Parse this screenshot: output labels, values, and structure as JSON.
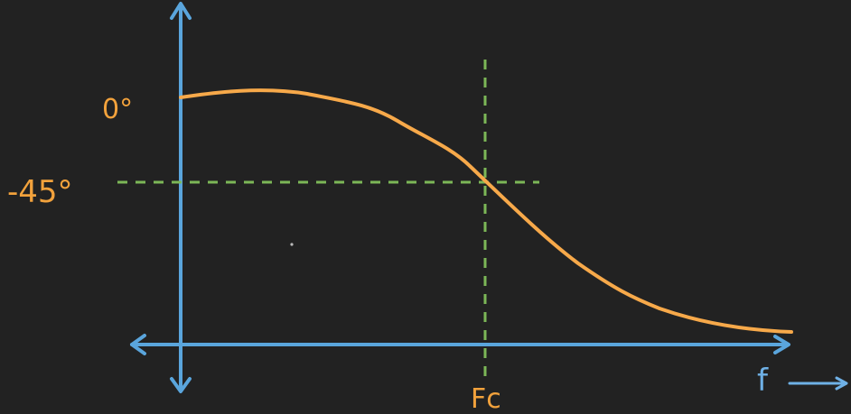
{
  "labels": {
    "zero_deg": "0°",
    "minus_45_deg": "-45°",
    "fc": "Fc",
    "f_axis": "f"
  },
  "colors": {
    "background": "#222222",
    "axis": "#5aa5dc",
    "curve": "#f7a94a",
    "guide": "#7cb757",
    "label_orange": "#f2a23c",
    "label_blue": "#6fb1e6"
  },
  "icons": {
    "f_arrow": "arrow-right-icon"
  }
}
